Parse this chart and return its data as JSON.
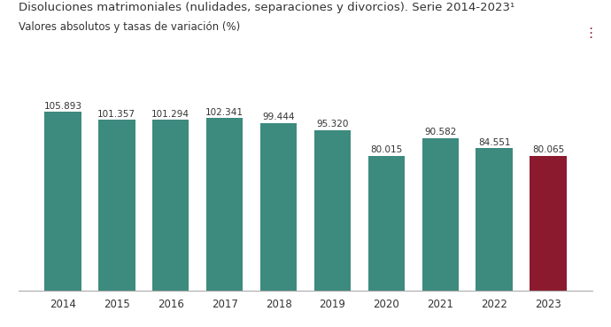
{
  "title_line1": "Disoluciones matrimoniales (nulidades, separaciones y divorcios). Serie 2014-2023¹",
  "title_line2": "Valores absolutos y tasas de variación (%)",
  "years": [
    2014,
    2015,
    2016,
    2017,
    2018,
    2019,
    2020,
    2021,
    2022,
    2023
  ],
  "values": [
    105893,
    101357,
    101294,
    102341,
    99444,
    95320,
    80015,
    90582,
    84551,
    80065
  ],
  "labels": [
    "105.893",
    "101.357",
    "101.294",
    "102.341",
    "99.444",
    "95.320",
    "80.015",
    "90.582",
    "84.551",
    "80.065"
  ],
  "bar_colors": [
    "#3d8a7e",
    "#3d8a7e",
    "#3d8a7e",
    "#3d8a7e",
    "#3d8a7e",
    "#3d8a7e",
    "#3d8a7e",
    "#3d8a7e",
    "#3d8a7e",
    "#8b1a2e"
  ],
  "background_color": "#ffffff",
  "text_color": "#333333",
  "label_fontsize": 7.5,
  "title_fontsize": 9.5,
  "subtitle_fontsize": 8.5,
  "dots_color": "#8b1a2e",
  "ylim": [
    0,
    118000
  ]
}
